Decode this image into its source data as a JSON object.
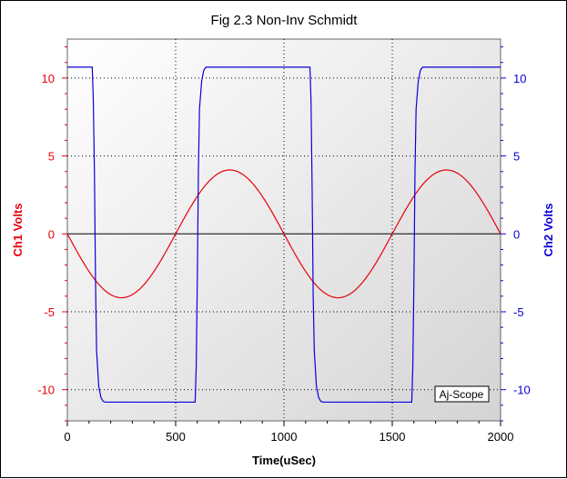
{
  "chart_data": {
    "type": "line",
    "title": "Fig 2.3 Non-Inv Schmidt",
    "xlabel": "Time(uSec)",
    "ylabel_left": "Ch1 Volts",
    "ylabel_right": "Ch2 Volts",
    "xlim": [
      0,
      2000
    ],
    "ylim_left": [
      -12,
      12.5
    ],
    "ylim_right": [
      -12,
      12.5
    ],
    "x_ticks": [
      0,
      500,
      1000,
      1500,
      2000
    ],
    "y_ticks": [
      -10,
      -5,
      0,
      5,
      10
    ],
    "x_tick_labels": [
      "0",
      "500",
      "1000",
      "1500",
      "2000"
    ],
    "y_tick_labels": [
      "-10",
      "-5",
      "0",
      "5",
      "10"
    ],
    "grid": true,
    "background_gradient": true,
    "watermark": "Aj-Scope",
    "series": [
      {
        "name": "Ch1",
        "axis": "left",
        "color": "#e8000b",
        "x": [
          0,
          50,
          100,
          150,
          200,
          250,
          300,
          350,
          400,
          450,
          500,
          550,
          600,
          650,
          700,
          750,
          800,
          850,
          900,
          950,
          1000,
          1050,
          1100,
          1150,
          1200,
          1250,
          1300,
          1350,
          1400,
          1450,
          1500,
          1550,
          1600,
          1650,
          1700,
          1750,
          1800,
          1850,
          1900,
          1950,
          2000
        ],
        "values": [
          0,
          -1.27,
          -2.41,
          -3.32,
          -3.9,
          -4.1,
          -3.9,
          -3.32,
          -2.41,
          -1.27,
          0,
          1.27,
          2.41,
          3.32,
          3.9,
          4.1,
          3.9,
          3.32,
          2.41,
          1.27,
          0,
          -1.27,
          -2.41,
          -3.32,
          -3.9,
          -4.1,
          -3.9,
          -3.32,
          -2.41,
          -1.27,
          0,
          1.27,
          2.41,
          3.32,
          3.9,
          4.1,
          3.9,
          3.32,
          2.41,
          1.27,
          0
        ]
      },
      {
        "name": "Ch2",
        "axis": "right",
        "color": "#0a00d8",
        "x": [
          0,
          115,
          120,
          125,
          130,
          135,
          145,
          155,
          165,
          175,
          590,
          595,
          600,
          605,
          610,
          620,
          630,
          640,
          650,
          1120,
          1125,
          1130,
          1135,
          1140,
          1150,
          1160,
          1170,
          1180,
          1590,
          1595,
          1600,
          1605,
          1610,
          1620,
          1630,
          1640,
          1650,
          2000
        ],
        "values": [
          10.7,
          10.7,
          8.5,
          4,
          -3,
          -7.5,
          -9.8,
          -10.5,
          -10.75,
          -10.8,
          -10.8,
          -8.5,
          -3,
          4,
          8,
          9.8,
          10.5,
          10.7,
          10.7,
          10.7,
          8.5,
          3,
          -4,
          -7.5,
          -9.8,
          -10.5,
          -10.75,
          -10.8,
          -10.8,
          -8.5,
          -3,
          4,
          8,
          9.8,
          10.5,
          10.7,
          10.7,
          10.7
        ]
      }
    ]
  }
}
